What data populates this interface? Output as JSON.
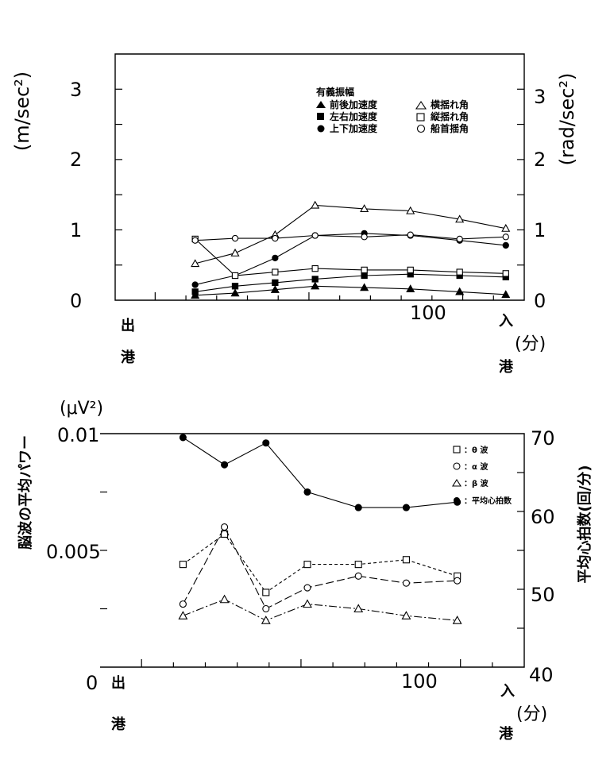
{
  "chart_data": [
    {
      "type": "line",
      "x": [
        13,
        26,
        39,
        52,
        68,
        83,
        99,
        114
      ],
      "xlim": [
        -13,
        120
      ],
      "xticks": [
        100
      ],
      "ylim_left": [
        0,
        3.5
      ],
      "yticks_left": [
        "0",
        "1",
        "2",
        "3"
      ],
      "ylim_right": [
        0,
        3.5
      ],
      "yticks_right": [
        "0",
        "1",
        "2",
        "3"
      ],
      "ylabel_left": "(m/sec²)",
      "ylabel_right": "(rad/sec²)",
      "xlabel": "(分)",
      "x_start_label": [
        "出",
        "港"
      ],
      "x_end_label": [
        "入",
        "港"
      ],
      "legend_title": "有義振幅",
      "series": [
        {
          "name": "前後加速度",
          "marker": "tri-filled",
          "axis": "left",
          "dash": "",
          "values": [
            0.07,
            0.1,
            0.15,
            0.2,
            0.18,
            0.16,
            0.12,
            0.08
          ]
        },
        {
          "name": "左右加速度",
          "marker": "sq-filled",
          "axis": "left",
          "dash": "",
          "values": [
            0.12,
            0.2,
            0.25,
            0.3,
            0.35,
            0.37,
            0.35,
            0.33
          ]
        },
        {
          "name": "上下加速度",
          "marker": "circle-filled",
          "axis": "left",
          "dash": "",
          "values": [
            0.22,
            0.35,
            0.6,
            0.92,
            0.95,
            0.92,
            0.85,
            0.78
          ]
        },
        {
          "name": "横揺れ角",
          "marker": "tri-open",
          "axis": "right",
          "dash": "",
          "values": [
            0.52,
            0.67,
            0.93,
            1.35,
            1.3,
            1.27,
            1.15,
            1.02
          ]
        },
        {
          "name": "縦揺れ角",
          "marker": "sq-open",
          "axis": "right",
          "dash": "",
          "values": [
            0.87,
            0.35,
            0.4,
            0.45,
            0.43,
            0.43,
            0.4,
            0.38
          ]
        },
        {
          "name": "船首揺角",
          "marker": "circle-open",
          "axis": "right",
          "dash": "",
          "values": [
            0.85,
            0.88,
            0.88,
            0.92,
            0.9,
            0.93,
            0.87,
            0.9
          ]
        }
      ]
    },
    {
      "type": "line",
      "x": [
        13,
        26,
        39,
        52,
        68,
        83,
        99
      ],
      "xlim": [
        -13,
        120
      ],
      "xticks": [
        100
      ],
      "ylim_left": [
        0,
        0.01
      ],
      "yticks_left": [
        "0",
        "0.005",
        "0.01"
      ],
      "ylim_right": [
        40,
        70
      ],
      "yticks_right": [
        "40",
        "50",
        "60",
        "70"
      ],
      "ylabel_left": "脳波の平均パワー",
      "ylabel_left_unit": "(μV²)",
      "ylabel_right": "平均心拍数(回/分)",
      "xlabel": "(分)",
      "x_start_label": [
        "出",
        "港"
      ],
      "x_end_label": [
        "入",
        "港"
      ],
      "series": [
        {
          "name": "：θ 波",
          "marker": "sq-open",
          "axis": "left",
          "dash": "4 3",
          "values": [
            0.0044,
            0.0057,
            0.0032,
            0.0044,
            0.0044,
            0.0046,
            0.0039
          ]
        },
        {
          "name": "：α 波",
          "marker": "circle-open",
          "axis": "left",
          "dash": "10 4",
          "values": [
            0.0027,
            0.006,
            0.0025,
            0.0034,
            0.0039,
            0.0036,
            0.0037
          ]
        },
        {
          "name": "：β 波",
          "marker": "tri-open",
          "axis": "left",
          "dash": "10 3 2 3",
          "values": [
            0.0022,
            0.0029,
            0.002,
            0.0027,
            0.0025,
            0.0022,
            0.002
          ]
        },
        {
          "name": "：平均心拍数",
          "marker": "circle-filled",
          "axis": "right",
          "dash": "",
          "values": [
            69.5,
            66,
            68.8,
            62.5,
            60.5,
            60.5,
            61.2
          ]
        }
      ]
    }
  ]
}
